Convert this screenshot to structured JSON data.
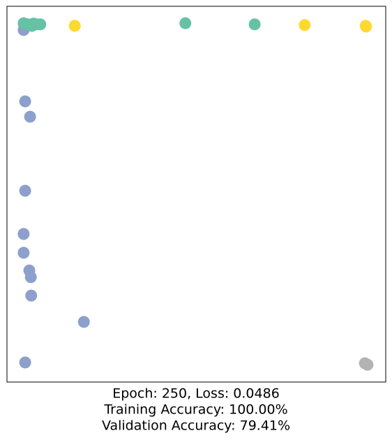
{
  "chart_data": {
    "type": "scatter",
    "xlabel": [
      "Epoch: 250, Loss: 0.0486",
      "Training Accuracy: 100.00%",
      "Validation Accuracy: 79.41%"
    ],
    "xlim": [
      0,
      1
    ],
    "ylim": [
      0,
      1
    ],
    "xticks": [],
    "yticks": [],
    "grid": false,
    "series": [
      {
        "color": "#8da0cb",
        "x": [
          0.044,
          0.048,
          0.061,
          0.048,
          0.044,
          0.044,
          0.059,
          0.063,
          0.064,
          0.203,
          0.048
        ],
        "values": [
          0.937,
          0.747,
          0.706,
          0.509,
          0.394,
          0.344,
          0.297,
          0.279,
          0.23,
          0.16,
          0.052
        ]
      },
      {
        "color": "#66c2a5",
        "x": [
          0.044,
          0.066,
          0.07,
          0.088,
          0.079,
          0.055,
          0.471,
          0.654
        ],
        "values": [
          0.955,
          0.948,
          0.954,
          0.952,
          0.952,
          0.952,
          0.955,
          0.952
        ]
      },
      {
        "color": "#ffd92f",
        "x": [
          0.179,
          0.786,
          0.947,
          0.948
        ],
        "values": [
          0.948,
          0.95,
          0.948,
          0.946
        ]
      },
      {
        "color": "#b3b3b3",
        "x": [
          0.945,
          0.952
        ],
        "values": [
          0.05,
          0.046
        ]
      }
    ]
  }
}
